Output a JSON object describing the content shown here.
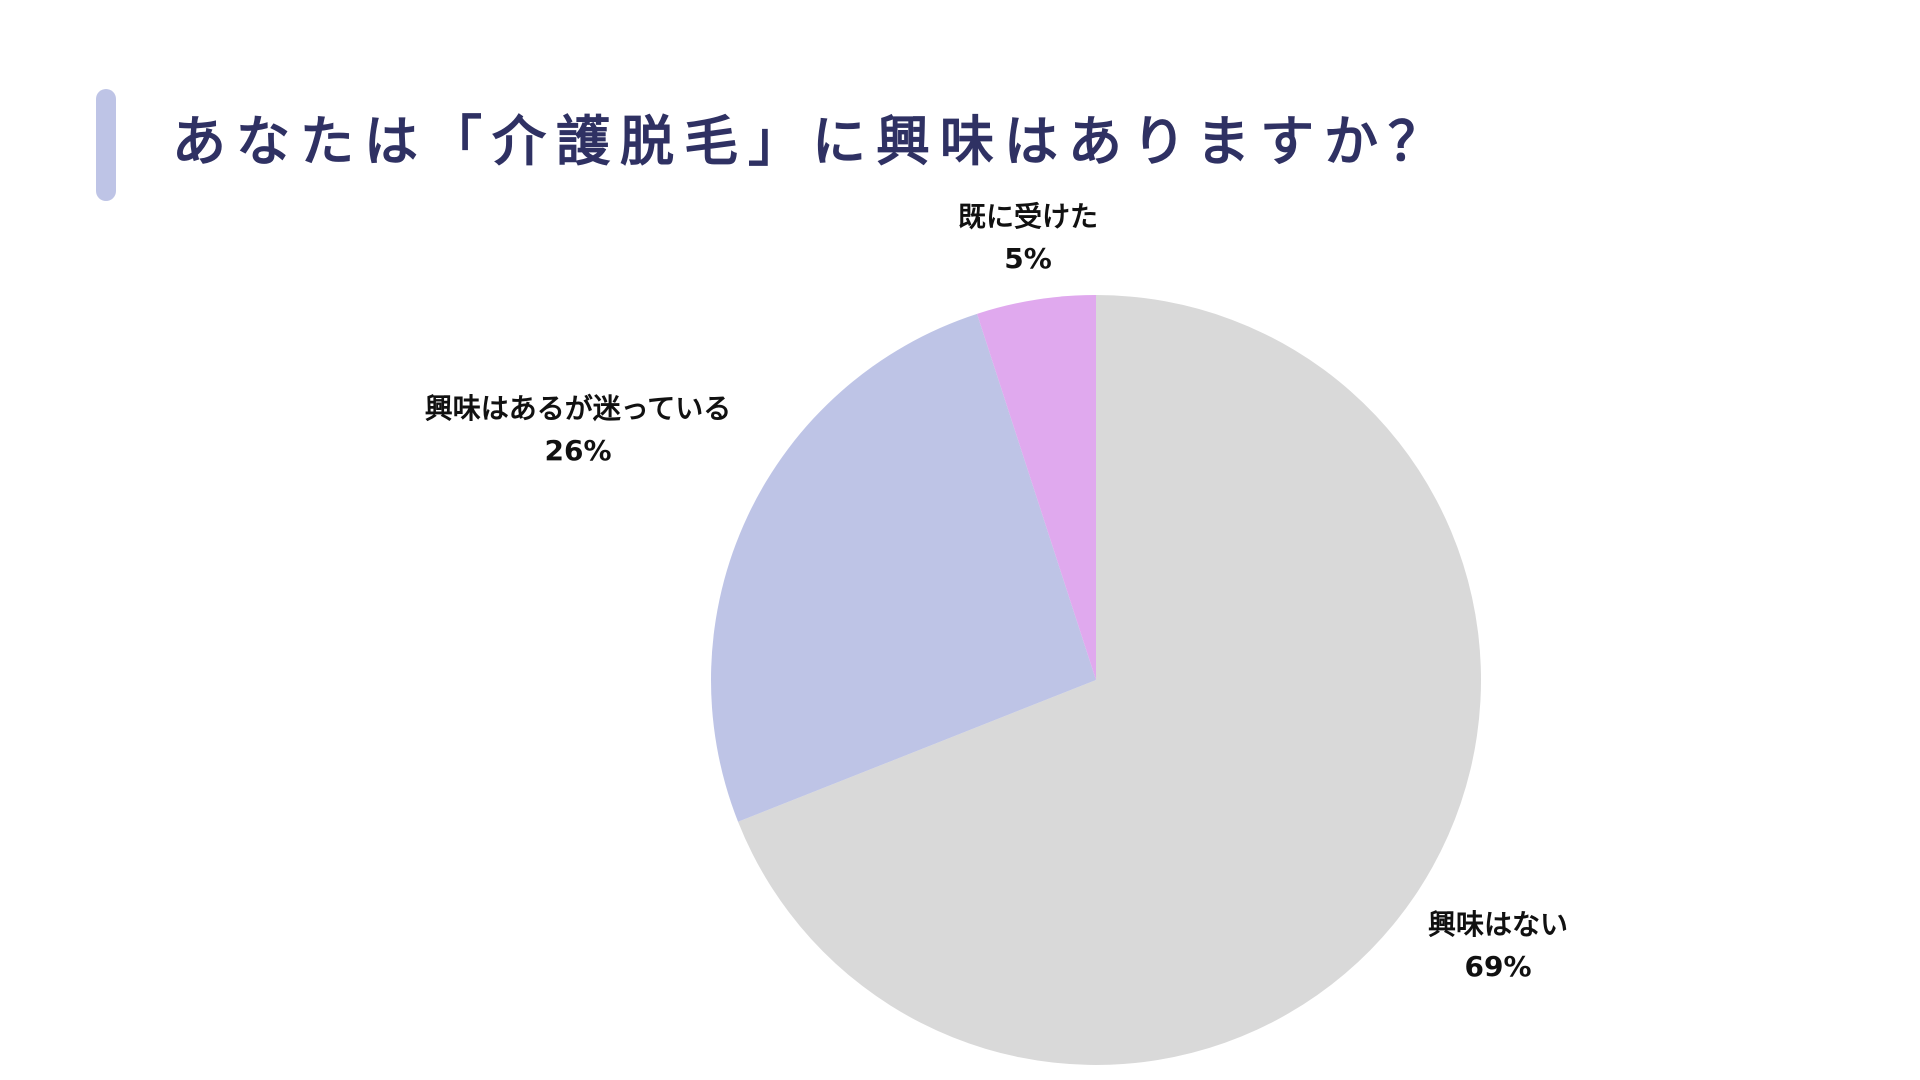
{
  "slide": {
    "title": "あなたは「介護脱毛」に興味はありますか？",
    "accent_color": "#bec4e6",
    "title_color": "#2f3163"
  },
  "chart_data": {
    "type": "pie",
    "start_angle_deg": 0,
    "direction": "clockwise",
    "slices": [
      {
        "label": "興味はない",
        "value": 69,
        "value_label": "69%",
        "color": "#d9d9d9"
      },
      {
        "label": "興味はあるが迷っている",
        "value": 26,
        "value_label": "26%",
        "color": "#bec4e6"
      },
      {
        "label": "既に受けた",
        "value": 5,
        "value_label": "5%",
        "color": "#e0a9ee"
      }
    ]
  }
}
